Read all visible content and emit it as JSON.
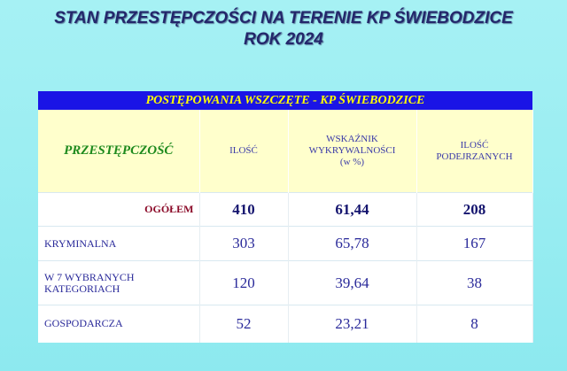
{
  "header": {
    "title": "STAN PRZESTĘPCZOŚCI NA TERENIE KP ŚWIEBODZICE",
    "subtitle": "ROK 2024"
  },
  "table": {
    "caption": "POSTĘPOWANIA WSZCZĘTE - KP ŚWIEBODZICE",
    "columns": [
      [
        "PRZESTĘPCZOŚĆ"
      ],
      [
        "ILOŚĆ"
      ],
      [
        "WSKAŹNIK",
        "WYKRYWALNOŚCI",
        "(w %)"
      ],
      [
        "ILOŚĆ",
        "PODEJRZANYCH"
      ]
    ],
    "rows": [
      [
        "OGÓŁEM",
        "410",
        "61,44",
        "208"
      ],
      [
        "KRYMINALNA",
        "303",
        "65,78",
        "167"
      ],
      [
        "W 7 WYBRANYCH KATEGORIACH",
        "120",
        "39,64",
        "38"
      ],
      [
        "GOSPODARCZA",
        "52",
        "23,21",
        "8"
      ]
    ]
  }
}
